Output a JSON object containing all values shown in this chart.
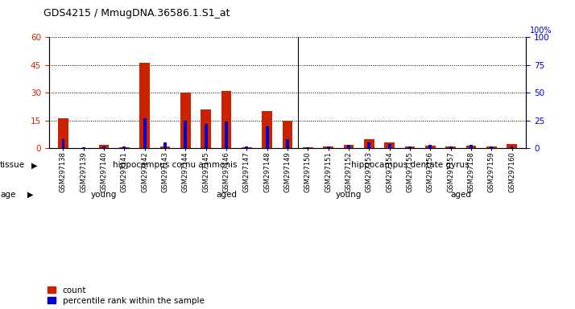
{
  "title": "GDS4215 / MmugDNA.36586.1.S1_at",
  "samples": [
    "GSM297138",
    "GSM297139",
    "GSM297140",
    "GSM297141",
    "GSM297142",
    "GSM297143",
    "GSM297144",
    "GSM297145",
    "GSM297146",
    "GSM297147",
    "GSM297148",
    "GSM297149",
    "GSM297150",
    "GSM297151",
    "GSM297152",
    "GSM297153",
    "GSM297154",
    "GSM297155",
    "GSM297156",
    "GSM297157",
    "GSM297158",
    "GSM297159",
    "GSM297160"
  ],
  "count": [
    16,
    0.3,
    2,
    0.5,
    46,
    1,
    30,
    21,
    31,
    0.5,
    20,
    15,
    0.5,
    1,
    2,
    5,
    3,
    1,
    1.5,
    1,
    1.5,
    1,
    2.5
  ],
  "percentile": [
    8,
    1,
    2,
    2,
    27,
    5,
    25,
    22,
    24,
    2,
    20,
    8,
    1,
    2,
    3,
    5,
    4,
    2,
    3,
    2,
    3,
    2,
    2
  ],
  "ylim_left": [
    0,
    60
  ],
  "ylim_right": [
    0,
    100
  ],
  "yticks_left": [
    0,
    15,
    30,
    45,
    60
  ],
  "yticks_right": [
    0,
    25,
    50,
    75,
    100
  ],
  "count_color": "#cc2200",
  "percentile_color": "#0000cc",
  "tissue_groups": [
    {
      "label": "hippocampus cornu ammonis",
      "start": 0,
      "end": 11,
      "color": "#aaddaa"
    },
    {
      "label": "hippocampus dentate gyrus",
      "start": 12,
      "end": 22,
      "color": "#aaddaa"
    }
  ],
  "age_groups": [
    {
      "label": "young",
      "start": 0,
      "end": 4,
      "color": "#dd88dd"
    },
    {
      "label": "aged",
      "start": 5,
      "end": 11,
      "color": "#dd88dd"
    },
    {
      "label": "young",
      "start": 12,
      "end": 16,
      "color": "#dd88dd"
    },
    {
      "label": "aged",
      "start": 17,
      "end": 22,
      "color": "#dd88dd"
    }
  ],
  "separator_idx": 11.5
}
